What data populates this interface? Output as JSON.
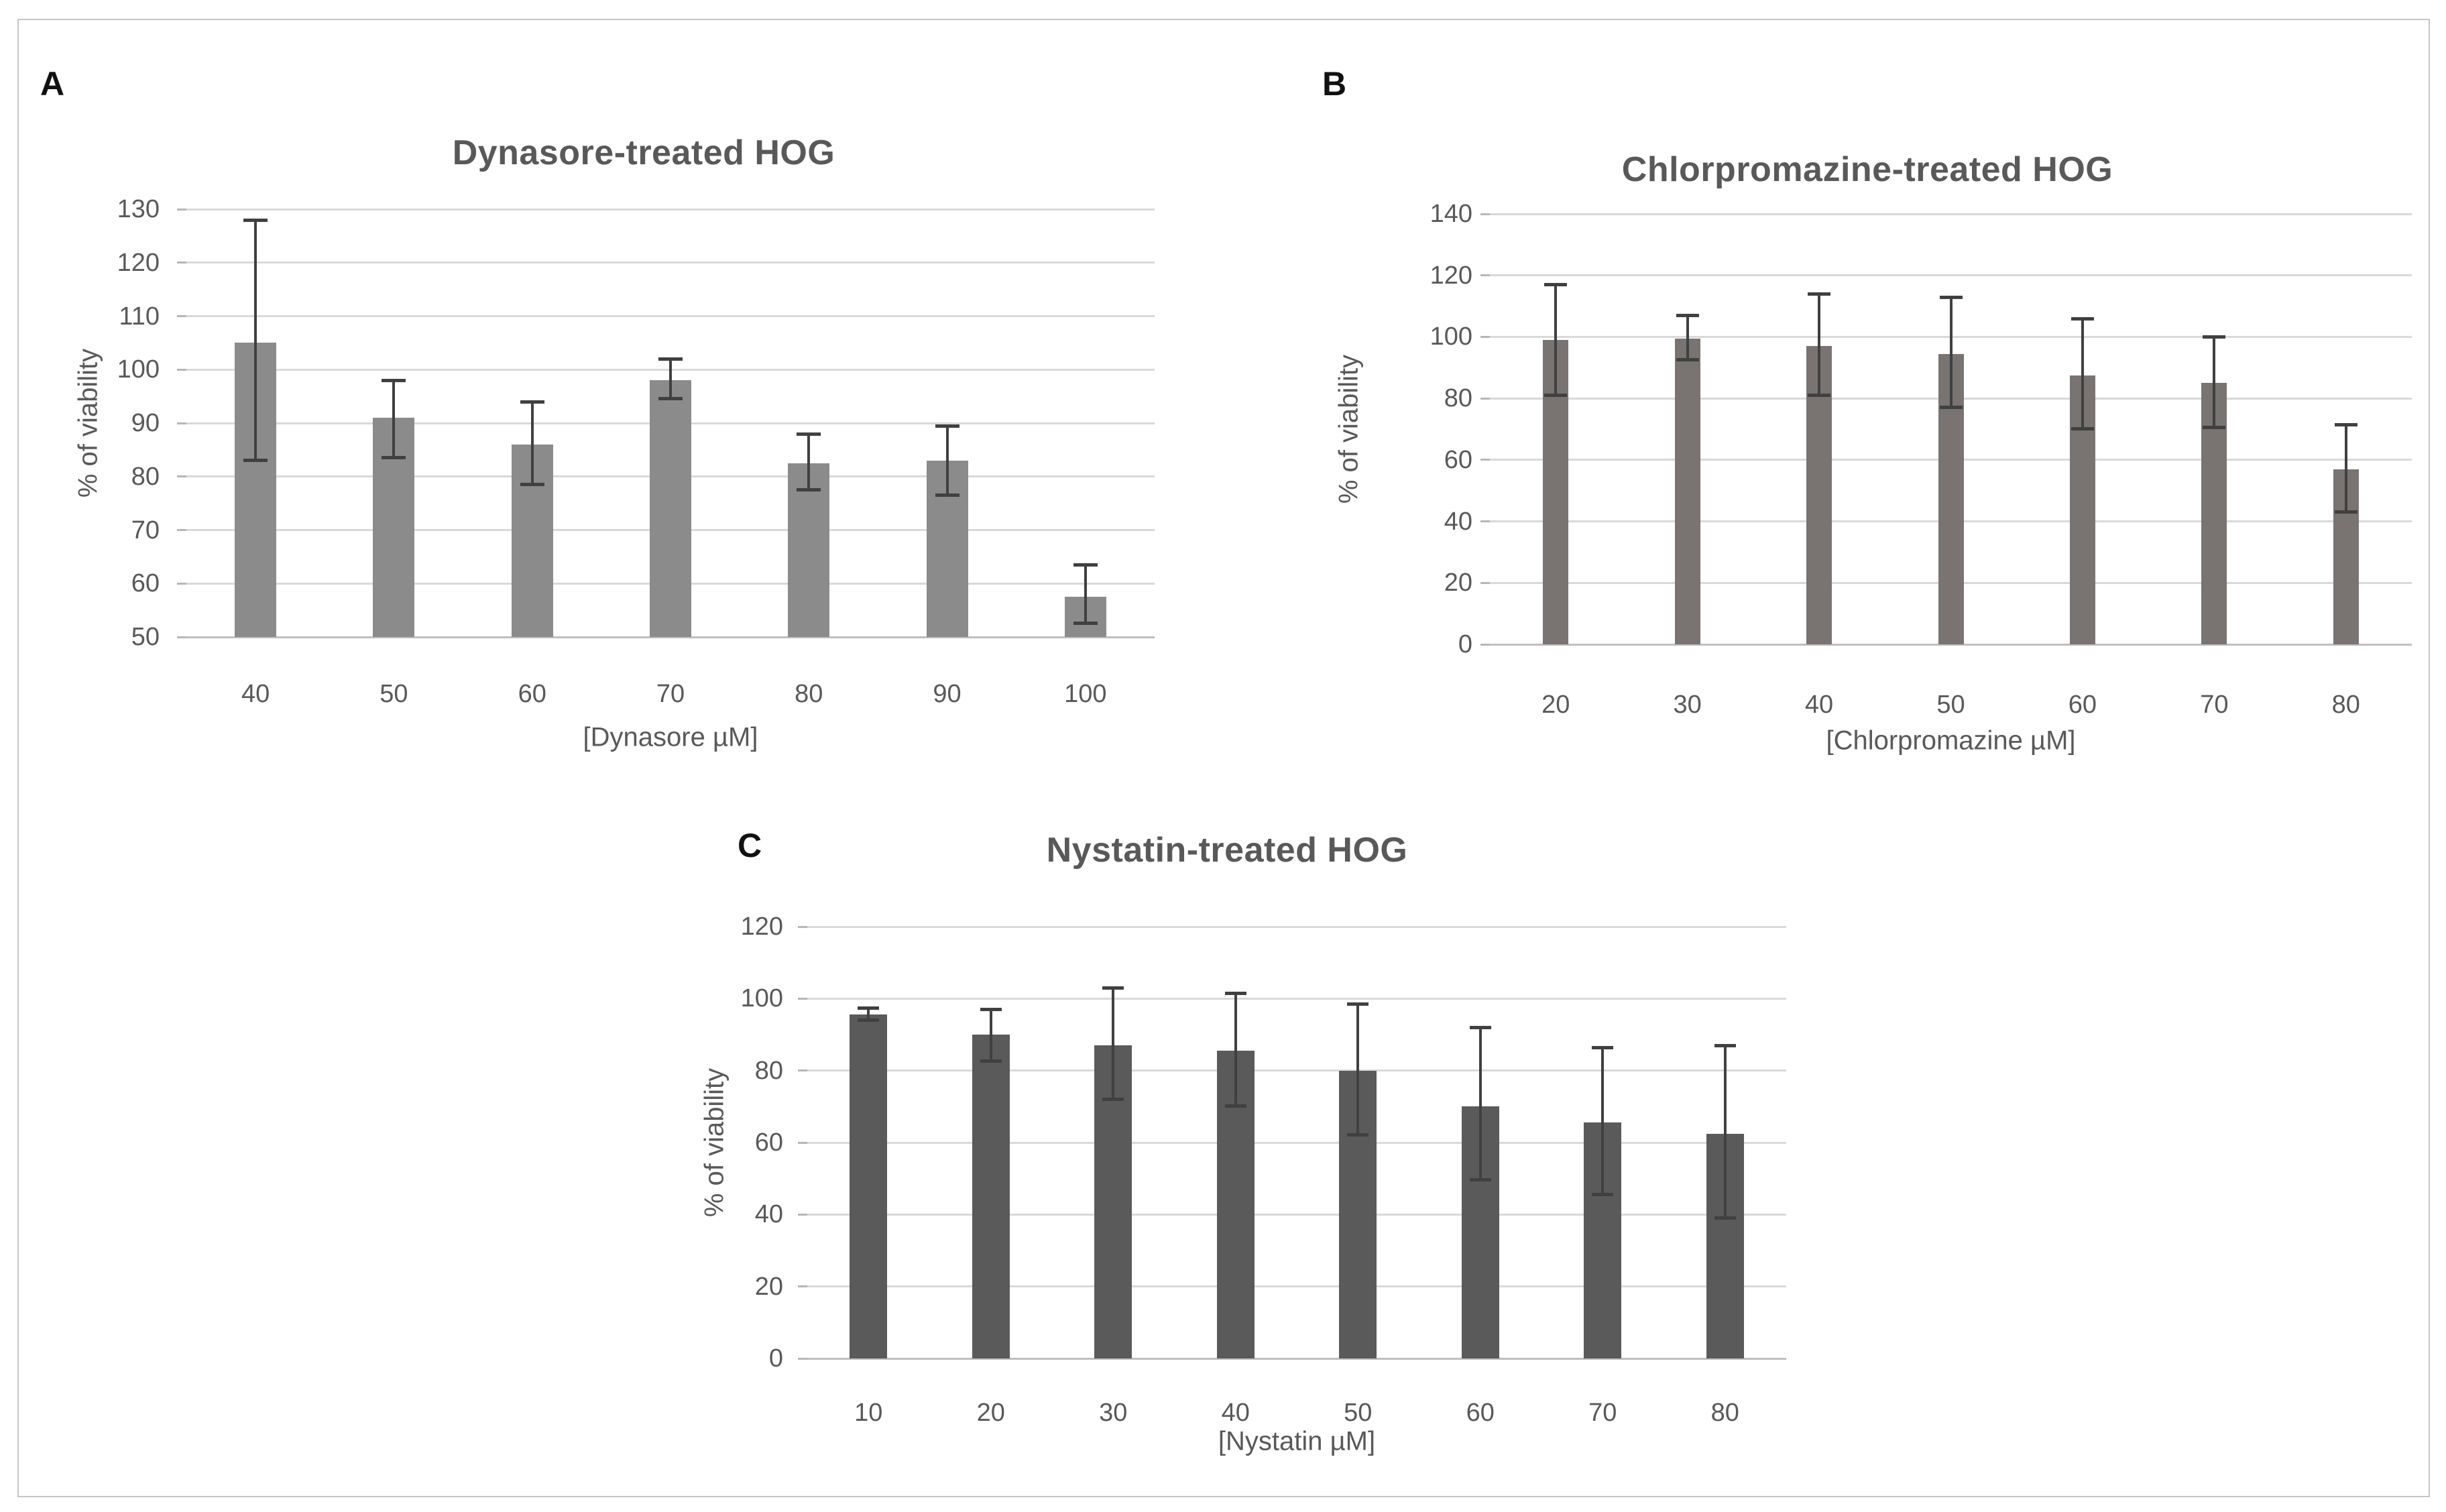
{
  "figure": {
    "background": "#ffffff",
    "border_color": "#c6c6c6",
    "gridline_color": "#d9d9d9",
    "baseline_color": "#bfbfbf",
    "tick_color": "#b7b7b7",
    "error_bar_color": "#404040",
    "text_color": "#595959",
    "panel_letter_color": "#111111"
  },
  "chart_data": [
    {
      "panel_label": "A",
      "type": "bar",
      "title": "Dynasore-treated HOG",
      "xlabel": "[Dynasore µM]",
      "ylabel": "% of viability",
      "categories": [
        "40",
        "50",
        "60",
        "70",
        "80",
        "90",
        "100"
      ],
      "values": [
        105,
        91,
        86,
        98,
        82.5,
        83,
        57.5
      ],
      "error_low": [
        83,
        83.5,
        78.5,
        94.5,
        77.5,
        76.5,
        52.5
      ],
      "error_high": [
        128,
        98,
        94,
        102,
        88,
        89.5,
        63.5
      ],
      "ylim": [
        50,
        130
      ],
      "ytick_step": 10,
      "grid": true,
      "legend": null,
      "bar_color": "#8b8b8b"
    },
    {
      "panel_label": "B",
      "type": "bar",
      "title": "Chlorpromazine-treated HOG",
      "xlabel": "[Chlorpromazine µM]",
      "ylabel": "% of viability",
      "categories": [
        "20",
        "30",
        "40",
        "50",
        "60",
        "70",
        "80"
      ],
      "values": [
        99,
        99.5,
        97,
        94.5,
        87.5,
        85,
        57
      ],
      "error_low": [
        81,
        92.5,
        81,
        77,
        70,
        70.5,
        43
      ],
      "error_high": [
        117,
        107,
        114,
        113,
        106,
        100,
        71.5
      ],
      "ylim": [
        0,
        140
      ],
      "ytick_step": 20,
      "grid": true,
      "legend": null,
      "bar_color": "#797372"
    },
    {
      "panel_label": "C",
      "type": "bar",
      "title": "Nystatin-treated HOG",
      "xlabel": "[Nystatin µM]",
      "ylabel": "% of viability",
      "categories": [
        "10",
        "20",
        "30",
        "40",
        "50",
        "60",
        "70",
        "80"
      ],
      "values": [
        95.5,
        90,
        87,
        85.5,
        80,
        70,
        65.5,
        62.5
      ],
      "error_low": [
        94,
        82.5,
        72,
        70,
        62,
        49.5,
        45.5,
        39
      ],
      "error_high": [
        97.5,
        97,
        103,
        101.5,
        98.5,
        92,
        86.5,
        87
      ],
      "ylim": [
        0,
        120
      ],
      "ytick_step": 20,
      "grid": true,
      "legend": null,
      "bar_color": "#5a5a5a"
    }
  ]
}
